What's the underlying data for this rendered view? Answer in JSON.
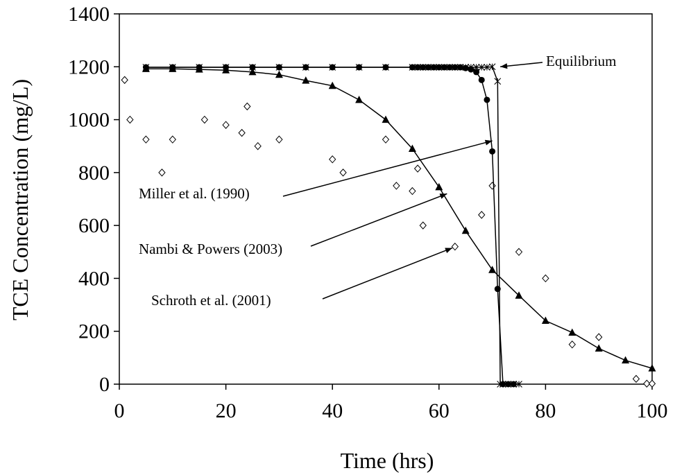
{
  "chart_data": {
    "type": "scatter",
    "title": "",
    "xlabel": "Time (hrs)",
    "ylabel": "TCE Concentration (mg/L)",
    "xlim": [
      0,
      100
    ],
    "ylim": [
      0,
      1400
    ],
    "xticks": [
      0,
      20,
      40,
      60,
      80,
      100
    ],
    "yticks": [
      0,
      200,
      400,
      600,
      800,
      1000,
      1200,
      1400
    ],
    "grid": false,
    "series": [
      {
        "name": "Equilibrium",
        "marker": "asterisk",
        "line": true,
        "color": "#000000",
        "x": [
          5,
          10,
          15,
          20,
          25,
          30,
          35,
          40,
          45,
          50,
          55,
          56,
          57,
          58,
          59,
          60,
          61,
          62,
          63,
          64,
          65,
          66,
          67,
          68,
          69,
          70,
          71,
          71.5,
          72,
          73,
          74,
          75
        ],
        "y": [
          1198,
          1198,
          1198,
          1198,
          1198,
          1198,
          1198,
          1198,
          1198,
          1198,
          1198,
          1198,
          1198,
          1198,
          1198,
          1198,
          1198,
          1198,
          1198,
          1198,
          1198,
          1198,
          1198,
          1198,
          1198,
          1200,
          1145,
          0,
          0,
          0,
          0,
          0
        ]
      },
      {
        "name": "Miller et al. (1990)",
        "marker": "filled-circle",
        "line": true,
        "color": "#000000",
        "x": [
          5,
          10,
          15,
          20,
          25,
          30,
          35,
          40,
          45,
          50,
          55,
          56,
          57,
          58,
          59,
          60,
          61,
          62,
          63,
          64,
          65,
          66,
          67,
          68,
          69,
          70,
          71,
          72,
          73,
          74
        ],
        "y": [
          1198,
          1198,
          1198,
          1198,
          1198,
          1198,
          1198,
          1198,
          1198,
          1198,
          1198,
          1198,
          1198,
          1198,
          1198,
          1198,
          1198,
          1198,
          1198,
          1198,
          1195,
          1190,
          1180,
          1150,
          1075,
          880,
          360,
          0,
          0,
          0
        ]
      },
      {
        "name": "Nambi & Powers (2003)",
        "marker": "filled-triangle",
        "line": true,
        "color": "#000000",
        "x": [
          5,
          10,
          15,
          20,
          25,
          30,
          35,
          40,
          45,
          50,
          55,
          60,
          65,
          70,
          75,
          80,
          85,
          90,
          95,
          100
        ],
        "y": [
          1192,
          1192,
          1190,
          1187,
          1180,
          1170,
          1148,
          1128,
          1075,
          1000,
          890,
          745,
          580,
          432,
          335,
          240,
          195,
          135,
          90,
          60
        ]
      },
      {
        "name": "Schroth et al. (2001)",
        "marker": "open-diamond",
        "line": false,
        "color": "#000000",
        "x": [
          1,
          2,
          5,
          8,
          10,
          16,
          20,
          23,
          24,
          26,
          30,
          40,
          42,
          50,
          52,
          55,
          56,
          57,
          63,
          68,
          70,
          75,
          80,
          85,
          90,
          97,
          99,
          100
        ],
        "y": [
          1150,
          1000,
          925,
          800,
          925,
          1000,
          980,
          950,
          1050,
          900,
          925,
          850,
          800,
          925,
          750,
          730,
          815,
          600,
          520,
          640,
          750,
          500,
          400,
          150,
          178,
          20,
          2,
          2
        ]
      }
    ],
    "annotations": [
      {
        "text": "Equilibrium",
        "target_x": 71.5,
        "target_y": 1200
      },
      {
        "text": "Miller et al. (1990)",
        "target_x": 70,
        "target_y": 920
      },
      {
        "text": "Nambi & Powers (2003)",
        "target_x": 61.5,
        "target_y": 720
      },
      {
        "text": "Schroth et al. (2001)",
        "target_x": 62.5,
        "target_y": 515
      }
    ]
  }
}
